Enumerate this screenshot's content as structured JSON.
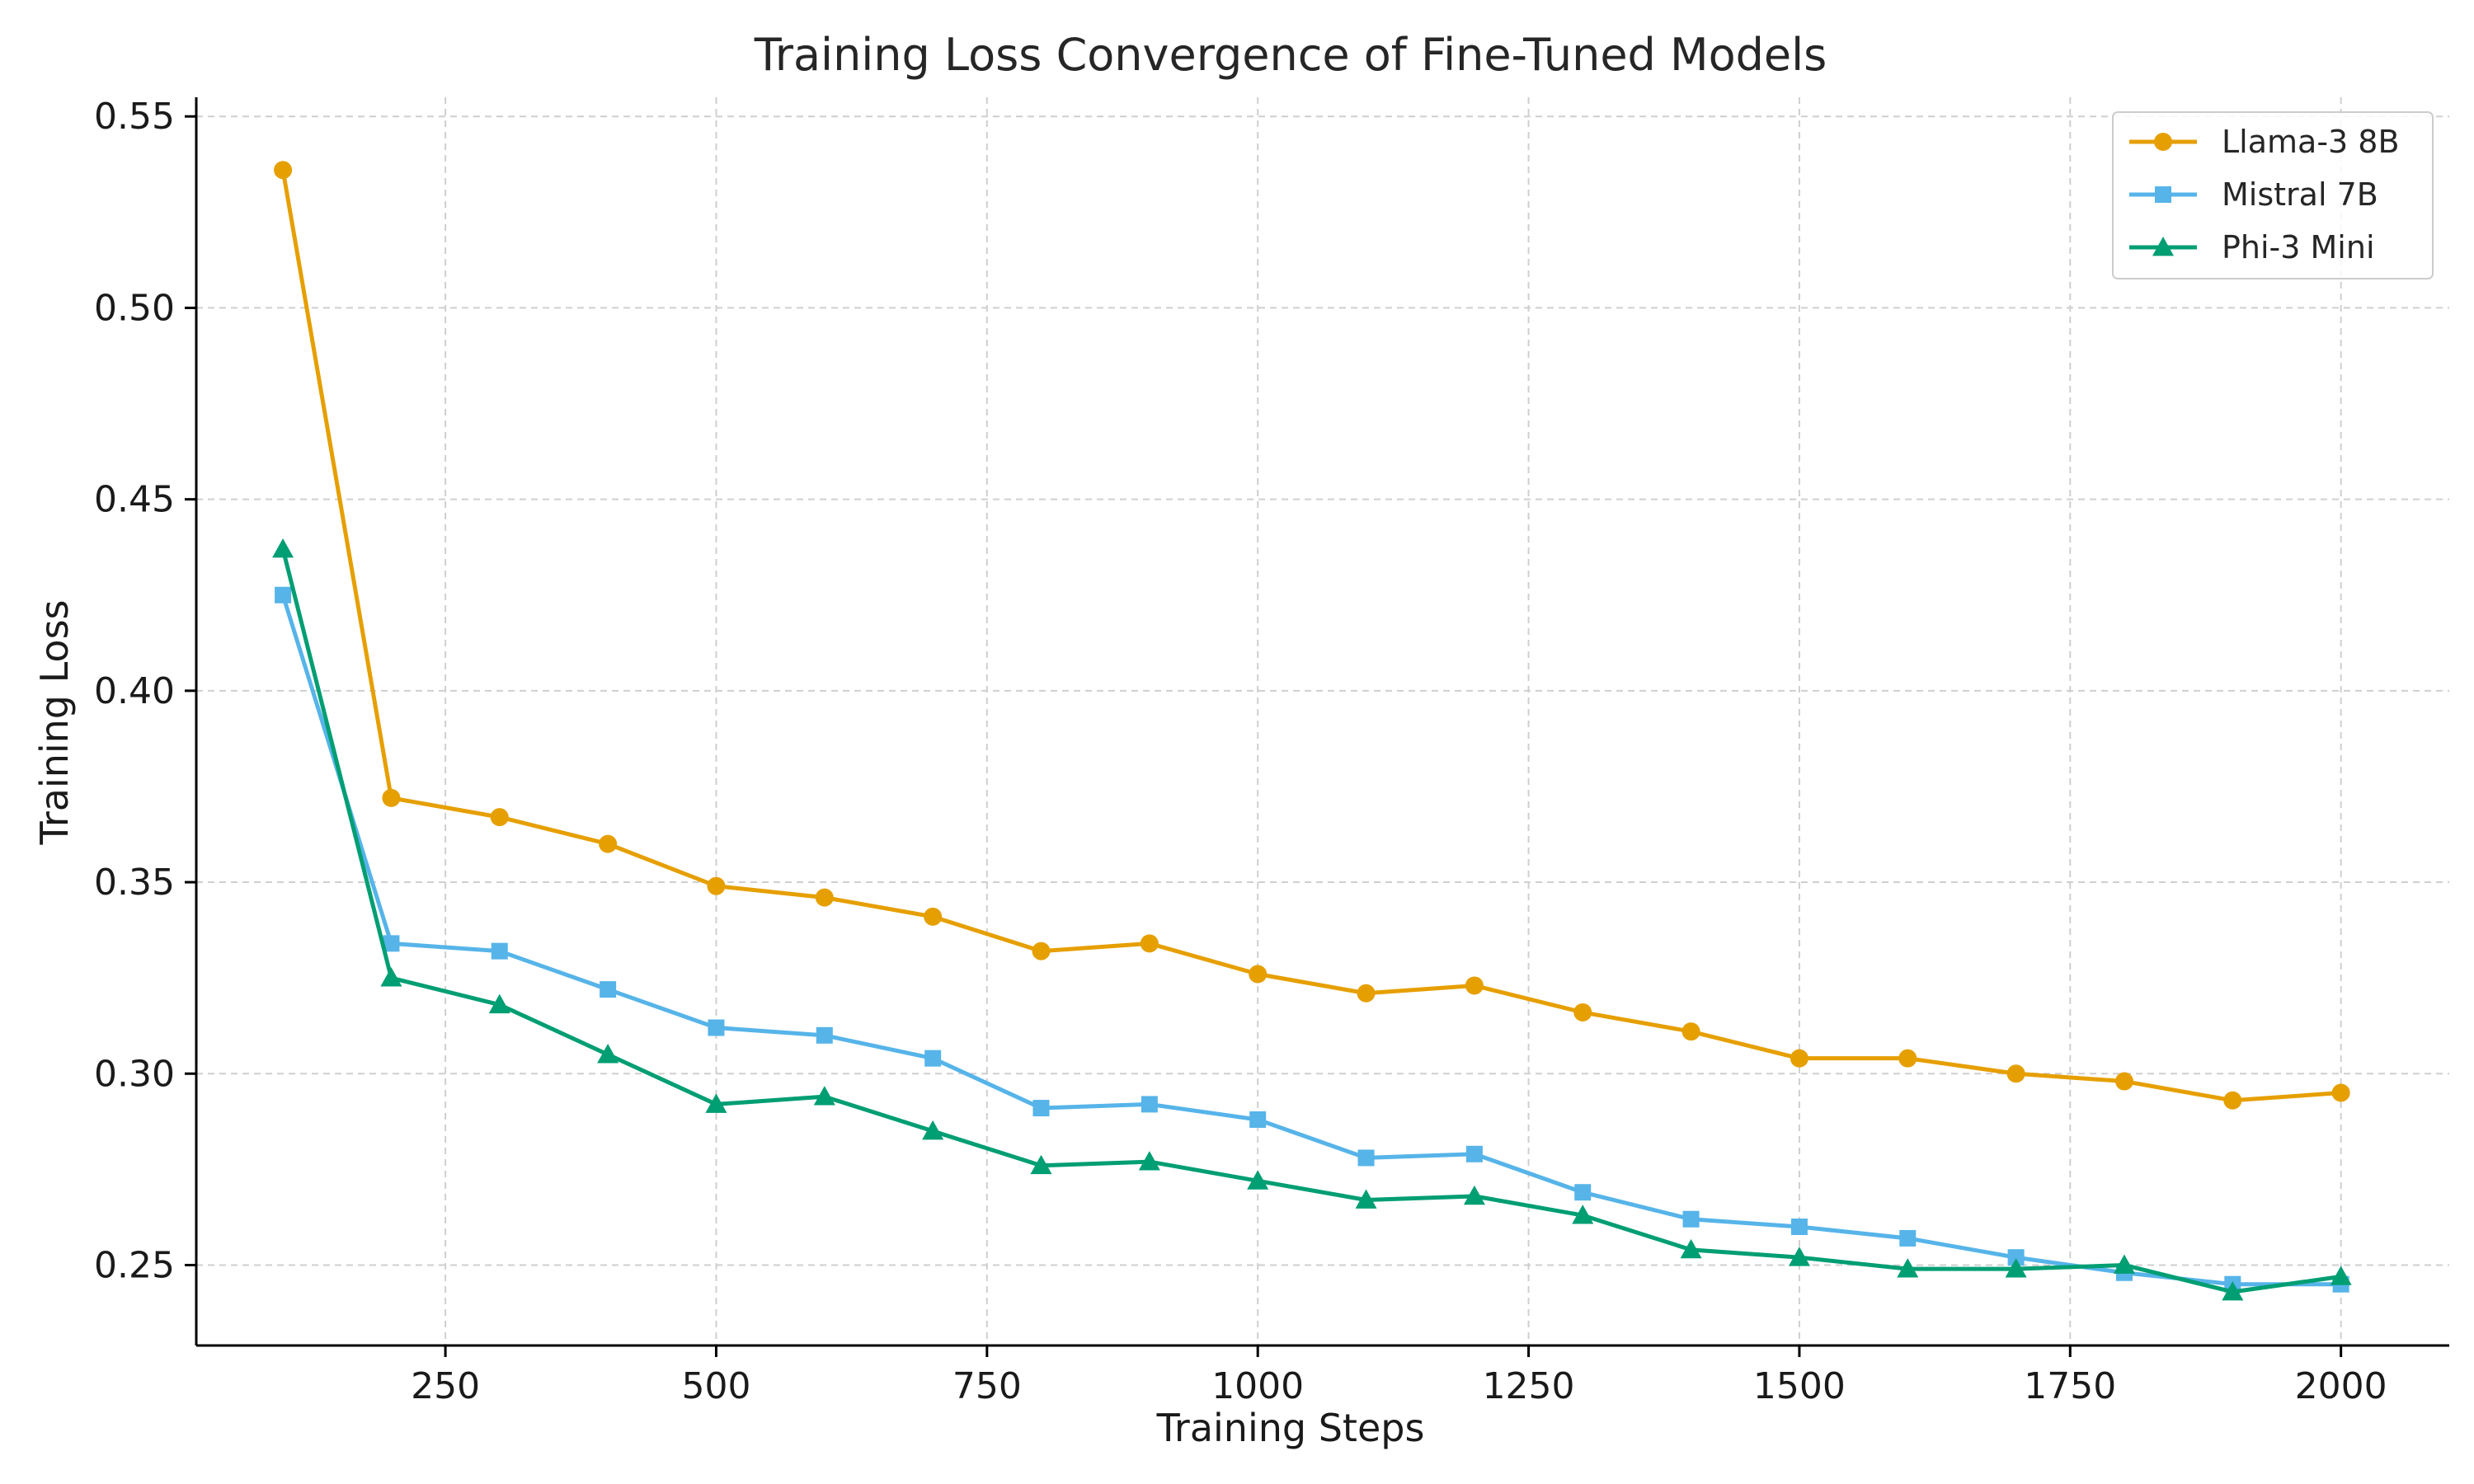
{
  "chart_data": {
    "type": "line",
    "title": "Training Loss Convergence of Fine-Tuned Models",
    "xlabel": "Training Steps",
    "ylabel": "Training Loss",
    "xlim": [
      20,
      2100
    ],
    "ylim": [
      0.229,
      0.555
    ],
    "xticks": [
      250,
      500,
      750,
      1000,
      1250,
      1500,
      1750,
      2000
    ],
    "yticks": [
      0.25,
      0.3,
      0.35,
      0.4,
      0.45,
      0.5,
      0.55
    ],
    "xtick_labels": [
      "250",
      "500",
      "750",
      "1000",
      "1250",
      "1500",
      "1750",
      "2000"
    ],
    "ytick_labels": [
      "0.25",
      "0.30",
      "0.35",
      "0.40",
      "0.45",
      "0.50",
      "0.55"
    ],
    "grid": true,
    "legend_position": "top-right",
    "x": [
      100,
      200,
      300,
      400,
      500,
      600,
      700,
      800,
      900,
      1000,
      1100,
      1200,
      1300,
      1400,
      1500,
      1600,
      1700,
      1800,
      1900,
      2000
    ],
    "series": [
      {
        "name": "Llama-3 8B",
        "color": "#E69F00",
        "marker": "circle",
        "values": [
          0.536,
          0.372,
          0.367,
          0.36,
          0.349,
          0.346,
          0.341,
          0.332,
          0.334,
          0.326,
          0.321,
          0.323,
          0.316,
          0.311,
          0.304,
          0.304,
          0.3,
          0.298,
          0.293,
          0.295
        ]
      },
      {
        "name": "Mistral 7B",
        "color": "#56B4E9",
        "marker": "square",
        "values": [
          0.425,
          0.334,
          0.332,
          0.322,
          0.312,
          0.31,
          0.304,
          0.291,
          0.292,
          0.288,
          0.278,
          0.279,
          0.269,
          0.262,
          0.26,
          0.257,
          0.252,
          0.248,
          0.245,
          0.245
        ]
      },
      {
        "name": "Phi-3 Mini",
        "color": "#009E73",
        "marker": "triangle",
        "values": [
          0.437,
          0.325,
          0.318,
          0.305,
          0.292,
          0.294,
          0.285,
          0.276,
          0.277,
          0.272,
          0.267,
          0.268,
          0.263,
          0.254,
          0.252,
          0.249,
          0.249,
          0.25,
          0.243,
          0.247
        ]
      }
    ]
  }
}
